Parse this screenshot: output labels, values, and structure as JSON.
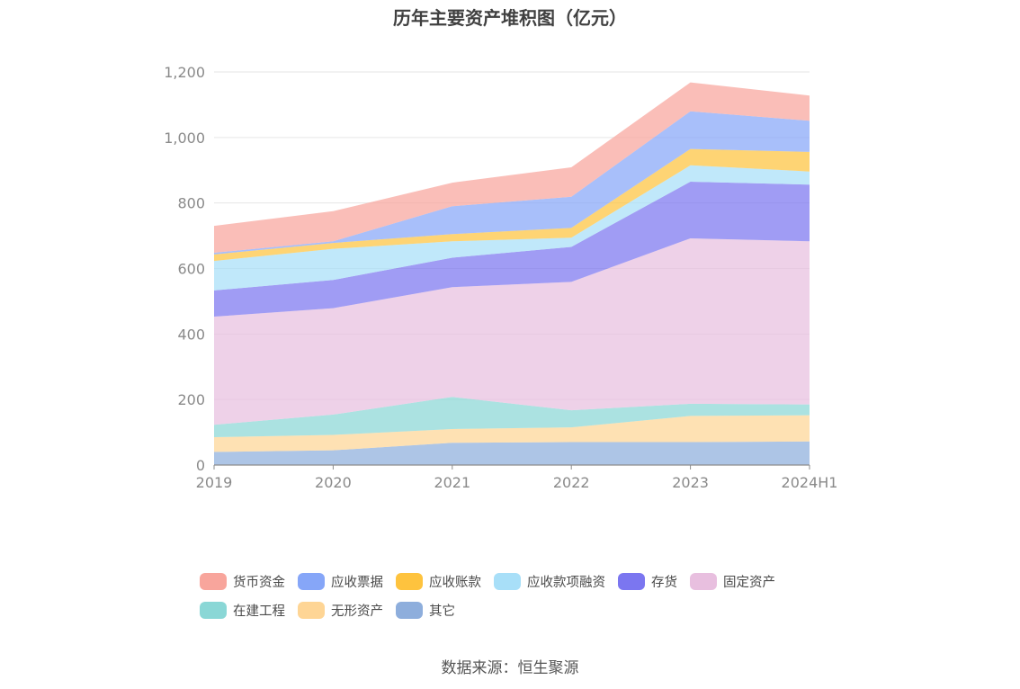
{
  "chart_data": {
    "type": "area",
    "stacked": true,
    "title": "历年主要资产堆积图（亿元）",
    "categories": [
      "2019",
      "2020",
      "2021",
      "2022",
      "2023",
      "2024H1"
    ],
    "ylim": [
      0,
      1200
    ],
    "yticks": [
      0,
      200,
      400,
      600,
      800,
      1000,
      1200
    ],
    "ytick_labels": [
      "0",
      "200",
      "400",
      "600",
      "800",
      "1,000",
      "1,200"
    ],
    "grid": true,
    "legend_position": "bottom",
    "series": [
      {
        "name": "其它",
        "color": "#8eaedc",
        "values": [
          40,
          45,
          68,
          70,
          70,
          72
        ]
      },
      {
        "name": "无形资产",
        "color": "#fed595",
        "values": [
          45,
          47,
          42,
          45,
          80,
          80
        ]
      },
      {
        "name": "在建工程",
        "color": "#8ad7d6",
        "values": [
          38,
          62,
          98,
          52,
          37,
          33
        ]
      },
      {
        "name": "固定资产",
        "color": "#e8bfdf",
        "values": [
          330,
          325,
          335,
          392,
          505,
          498
        ]
      },
      {
        "name": "存货",
        "color": "#7b76f0",
        "values": [
          80,
          86,
          90,
          107,
          173,
          173
        ]
      },
      {
        "name": "应收款项融资",
        "color": "#a8dff8",
        "values": [
          90,
          95,
          50,
          28,
          50,
          40
        ]
      },
      {
        "name": "应收账款",
        "color": "#fec33e",
        "values": [
          20,
          18,
          22,
          30,
          50,
          60
        ]
      },
      {
        "name": "应收票据",
        "color": "#86a6f8",
        "values": [
          5,
          5,
          85,
          95,
          115,
          95
        ]
      },
      {
        "name": "货币资金",
        "color": "#f8a59c",
        "values": [
          82,
          92,
          72,
          90,
          88,
          77
        ]
      }
    ]
  },
  "legend_order": [
    "货币资金",
    "应收票据",
    "应收账款",
    "应收款项融资",
    "存货",
    "固定资产",
    "在建工程",
    "无形资产",
    "其它"
  ],
  "source": "数据来源：恒生聚源"
}
